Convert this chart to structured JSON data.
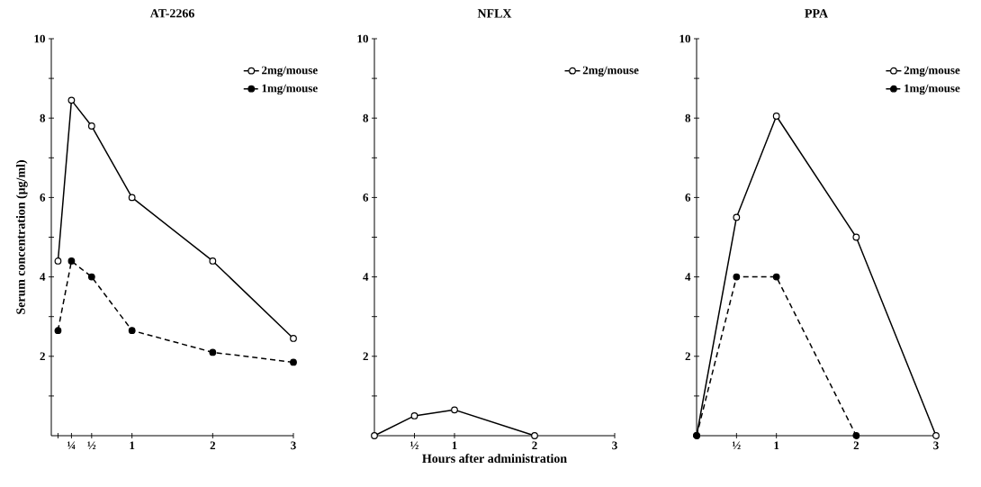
{
  "chart_data": [
    {
      "type": "line",
      "title": "AT-2266",
      "ylabel": "Serum concentration (μg/ml)",
      "xlim": [
        0,
        3
      ],
      "ylim": [
        0,
        10
      ],
      "xticks": [
        {
          "value": 0.083,
          "label": null
        },
        {
          "value": 0.25,
          "label": "¼"
        },
        {
          "value": 0.5,
          "label": "½"
        },
        1,
        2,
        3
      ],
      "yticks": [
        {
          "value": 1,
          "label": null
        },
        2,
        {
          "value": 3,
          "label": null
        },
        4,
        {
          "value": 5,
          "label": null
        },
        6,
        {
          "value": 7,
          "label": null
        },
        8,
        {
          "value": 9,
          "label": null
        },
        10
      ],
      "legend": "top right",
      "grid": false,
      "series": [
        {
          "name": "2mg/mouse",
          "color": "#000000",
          "marker": "circle",
          "line_style": "solid",
          "x": [
            0.083,
            0.25,
            0.5,
            1,
            2,
            3
          ],
          "values": [
            4.4,
            8.45,
            7.8,
            6.0,
            4.4,
            2.45
          ]
        },
        {
          "name": "1mg/mouse",
          "color": "#000000",
          "marker": "circle",
          "line_style": "dashed",
          "x": [
            0.083,
            0.25,
            0.5,
            1,
            2,
            3
          ],
          "values": [
            2.65,
            4.4,
            4.0,
            2.65,
            2.1,
            1.85
          ]
        }
      ]
    },
    {
      "type": "line",
      "title": "NFLX",
      "xlabel": "Hours after administration",
      "xlim": [
        0,
        3
      ],
      "ylim": [
        0,
        10
      ],
      "xticks": [
        {
          "value": 0.5,
          "label": "½"
        },
        1,
        2,
        3
      ],
      "yticks": [
        {
          "value": 1,
          "label": null
        },
        2,
        {
          "value": 3,
          "label": null
        },
        4,
        {
          "value": 5,
          "label": null
        },
        6,
        {
          "value": 7,
          "label": null
        },
        8,
        {
          "value": 9,
          "label": null
        },
        10
      ],
      "legend": "top right",
      "grid": false,
      "series": [
        {
          "name": "2mg/mouse",
          "color": "#000000",
          "marker": "circle",
          "line_style": "solid",
          "x": [
            0,
            0.5,
            1,
            2
          ],
          "values": [
            0,
            0.5,
            0.65,
            0
          ]
        }
      ]
    },
    {
      "type": "line",
      "title": "PPA",
      "xlim": [
        0,
        3
      ],
      "ylim": [
        0,
        10
      ],
      "xticks": [
        {
          "value": 0.5,
          "label": "½"
        },
        1,
        2,
        3
      ],
      "yticks": [
        {
          "value": 1,
          "label": null
        },
        2,
        {
          "value": 3,
          "label": null
        },
        4,
        {
          "value": 5,
          "label": null
        },
        6,
        {
          "value": 7,
          "label": null
        },
        8,
        {
          "value": 9,
          "label": null
        },
        10
      ],
      "legend": "top right",
      "grid": false,
      "series": [
        {
          "name": "2mg/mouse",
          "color": "#000000",
          "marker": "circle",
          "line_style": "solid",
          "x": [
            0,
            0.5,
            1,
            2,
            3
          ],
          "values": [
            0,
            5.5,
            8.05,
            5.0,
            0
          ]
        },
        {
          "name": "1mg/mouse",
          "color": "#000000",
          "marker": "circle",
          "line_style": "dashed",
          "x": [
            0,
            0.5,
            1,
            2
          ],
          "values": [
            0,
            4.0,
            4.0,
            0
          ]
        }
      ]
    }
  ]
}
